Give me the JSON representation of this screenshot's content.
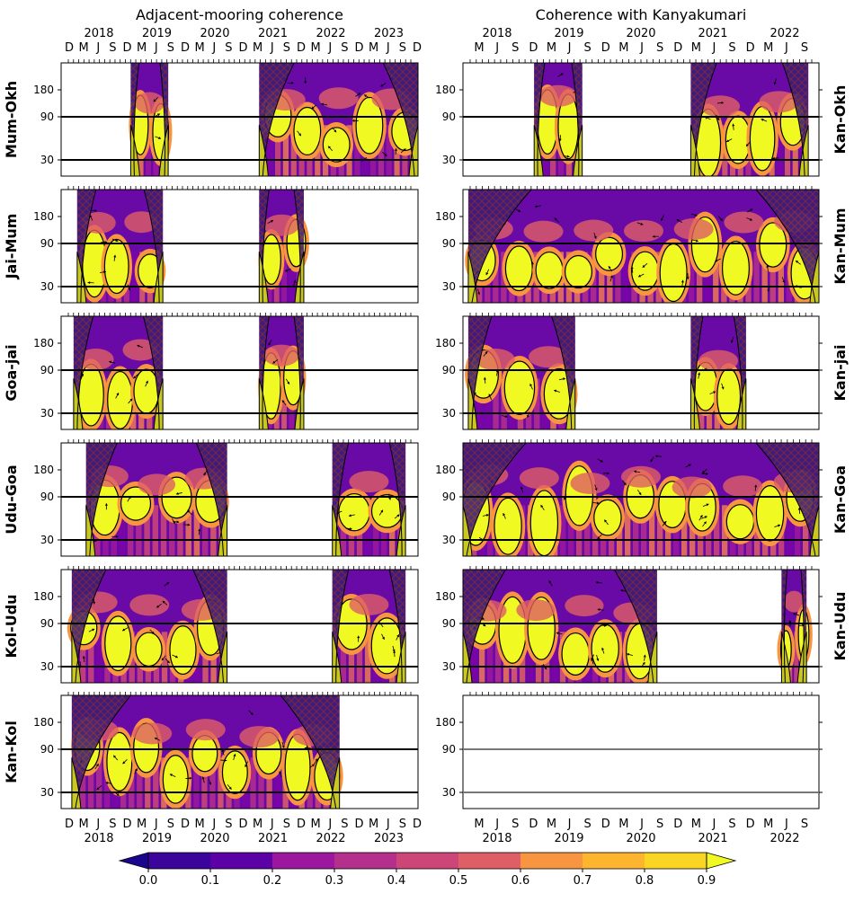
{
  "chart_data": {
    "type": "heatmap",
    "columns": [
      {
        "title": "Adjacent-mooring coherence",
        "top_years": [
          "2018",
          "2019",
          "2020",
          "2021",
          "2022",
          "2023"
        ],
        "bottom_years": [
          "2018",
          "2019",
          "2020",
          "2021",
          "2022",
          "2023"
        ],
        "month_letters": [
          "D",
          "M",
          "J",
          "S",
          "D",
          "M",
          "J",
          "S",
          "D",
          "M",
          "J",
          "S",
          "D",
          "M",
          "J",
          "S",
          "D",
          "M",
          "J",
          "S",
          "D",
          "M",
          "J",
          "S",
          "D"
        ]
      },
      {
        "title": "Coherence with Kanyakumari",
        "top_years": [
          "2018",
          "2019",
          "2020",
          "2021",
          "2022"
        ],
        "bottom_years": [
          "2018",
          "2019",
          "2020",
          "2021",
          "2022"
        ],
        "month_letters": [
          "M",
          "J",
          "S",
          "D",
          "M",
          "J",
          "S",
          "D",
          "M",
          "J",
          "S",
          "D",
          "M",
          "J",
          "S",
          "D",
          "M",
          "J",
          "S"
        ]
      }
    ],
    "left_rows": [
      "Mum-Okh",
      "Jai-Mum",
      "Goa-jai",
      "Udu-Goa",
      "Kol-Udu",
      "Kan-Kol"
    ],
    "right_rows": [
      "Kan-Okh",
      "Kan-Mum",
      "Kan-jai",
      "Kan-Goa",
      "Kan-Udu",
      ""
    ],
    "y_ticks": [
      30,
      90,
      180
    ],
    "y_reference_lines": [
      30,
      90
    ],
    "colorbar": {
      "ticks": [
        "0.0",
        "0.1",
        "0.2",
        "0.3",
        "0.4",
        "0.5",
        "0.6",
        "0.7",
        "0.8",
        "0.9"
      ],
      "colors": [
        "#1a068e",
        "#3b049a",
        "#5c01a6",
        "#7e03a8",
        "#9c179e",
        "#b52f8c",
        "#cc4778",
        "#de5f65",
        "#ed7953",
        "#f89540",
        "#fdb42f",
        "#fbd524",
        "#f0f921"
      ],
      "extend": "both"
    },
    "left_spans": [
      [
        [
          0.195,
          0.3
        ],
        [
          0.555,
          1.0
        ]
      ],
      [
        [
          0.045,
          0.285
        ],
        [
          0.555,
          0.68
        ]
      ],
      [
        [
          0.035,
          0.285
        ],
        [
          0.555,
          0.68
        ]
      ],
      [
        [
          0.07,
          0.465
        ],
        [
          0.76,
          0.965
        ]
      ],
      [
        [
          0.03,
          0.465
        ],
        [
          0.76,
          0.965
        ]
      ],
      [
        [
          0.03,
          0.78
        ]
      ]
    ],
    "right_spans": [
      [
        [
          0.2,
          0.335
        ],
        [
          0.64,
          0.97
        ]
      ],
      [
        [
          0.015,
          1.0
        ]
      ],
      [
        [
          0.015,
          0.315
        ],
        [
          0.64,
          0.795
        ]
      ],
      [
        [
          0.0,
          1.0
        ]
      ],
      [
        [
          0.0,
          0.545
        ],
        [
          0.895,
          0.965
        ]
      ],
      []
    ]
  }
}
